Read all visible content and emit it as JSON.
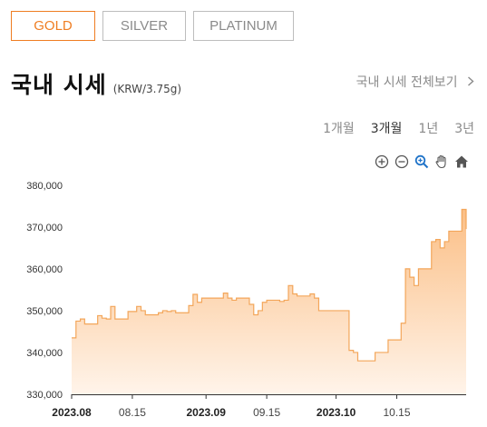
{
  "tabs": [
    "GOLD",
    "SILVER",
    "PLATINUM"
  ],
  "active_tab": "GOLD",
  "header": {
    "title": "국내 시세",
    "unit": "(KRW/3.75g)",
    "view_all": "국내 시세 전체보기",
    "view_all_icon": "chevron-right-icon"
  },
  "periods": [
    "1개월",
    "3개월",
    "1년",
    "3년"
  ],
  "active_period": "3개월",
  "tools": [
    "zoom-in-icon",
    "zoom-out-icon",
    "magnify-icon",
    "pan-hand-icon",
    "home-icon"
  ],
  "colors": {
    "accent": "#ef7d22",
    "line": "#f3a65a",
    "fill_top": "#fbbf86",
    "fill_bottom": "#fff4ea",
    "muted": "#8a8a8a"
  },
  "chart_data": {
    "type": "area",
    "title": "",
    "xlabel": "",
    "ylabel": "",
    "ylim": [
      330000,
      383000
    ],
    "yticks": [
      "330,000",
      "340,000",
      "350,000",
      "360,000",
      "370,000",
      "380,000"
    ],
    "ytick_values": [
      330000,
      340000,
      350000,
      360000,
      370000,
      380000
    ],
    "xticks": [
      "2023.08",
      "08.15",
      "2023.09",
      "09.15",
      "2023.10",
      "10.15"
    ],
    "xtick_dates": [
      "2023-08-01",
      "2023-08-15",
      "2023-09-01",
      "2023-09-15",
      "2023-10-01",
      "2023-10-15"
    ],
    "xrange": [
      "2023-08-01",
      "2023-10-31"
    ],
    "grid": false,
    "series": [
      {
        "x": [
          "2023-08-01",
          "2023-08-02",
          "2023-08-03",
          "2023-08-04",
          "2023-08-07",
          "2023-08-08",
          "2023-08-09",
          "2023-08-10",
          "2023-08-11",
          "2023-08-14",
          "2023-08-16",
          "2023-08-17",
          "2023-08-18",
          "2023-08-21",
          "2023-08-22",
          "2023-08-23",
          "2023-08-24",
          "2023-08-25",
          "2023-08-28",
          "2023-08-29",
          "2023-08-30",
          "2023-08-31",
          "2023-09-01",
          "2023-09-04",
          "2023-09-05",
          "2023-09-06",
          "2023-09-07",
          "2023-09-08",
          "2023-09-11",
          "2023-09-12",
          "2023-09-13",
          "2023-09-14",
          "2023-09-15",
          "2023-09-18",
          "2023-09-19",
          "2023-09-20",
          "2023-09-21",
          "2023-09-22",
          "2023-09-25",
          "2023-09-26",
          "2023-09-27",
          "2023-10-04",
          "2023-10-05",
          "2023-10-06",
          "2023-10-10",
          "2023-10-11",
          "2023-10-12",
          "2023-10-13",
          "2023-10-16",
          "2023-10-17",
          "2023-10-18",
          "2023-10-19",
          "2023-10-20",
          "2023-10-23",
          "2023-10-24",
          "2023-10-25",
          "2023-10-26",
          "2023-10-27",
          "2023-10-30",
          "2023-10-31"
        ],
        "values": [
          343500,
          347500,
          348000,
          346800,
          348800,
          348200,
          348000,
          351000,
          348000,
          349800,
          351000,
          350000,
          349000,
          349500,
          350000,
          349800,
          350000,
          349500,
          351200,
          353900,
          352000,
          353000,
          353000,
          353000,
          354200,
          353000,
          352500,
          353000,
          351500,
          349000,
          350000,
          352000,
          352500,
          352200,
          352500,
          356000,
          354000,
          353500,
          354000,
          353000,
          350000,
          340500,
          340000,
          338000,
          340000,
          340000,
          340000,
          343000,
          347000,
          360000,
          358000,
          356000,
          360000,
          366500,
          367000,
          365000,
          366500,
          369000,
          374200,
          369500
        ]
      }
    ]
  }
}
